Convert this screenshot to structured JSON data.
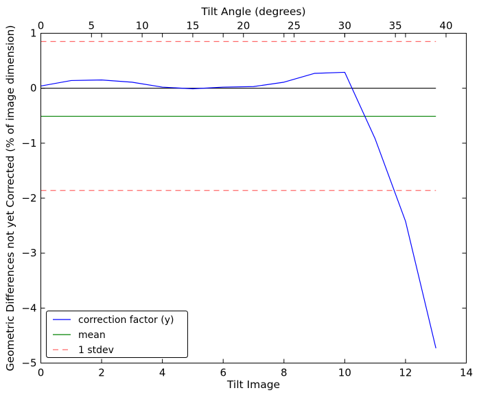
{
  "chart_data": {
    "type": "line",
    "xlabel": "Tilt Image",
    "ylabel": "Geometric Differences not yet Corrected (% of image dimension)",
    "x2label": "Tilt Angle (degrees)",
    "xlim": [
      0,
      14
    ],
    "ylim": [
      -5,
      1
    ],
    "x2lim": [
      0,
      42
    ],
    "xticks": [
      0,
      2,
      4,
      6,
      8,
      10,
      12,
      14
    ],
    "yticks": [
      1,
      0,
      -1,
      -2,
      -3,
      -4,
      -5
    ],
    "x2ticks": [
      0,
      5,
      10,
      15,
      20,
      25,
      30,
      35,
      40
    ],
    "grid": false,
    "legend_position": "lower-left",
    "colors": {
      "correction": "#0000ff",
      "mean": "#008000",
      "stdev": "#ff0000",
      "zero": "#000000"
    },
    "series": [
      {
        "name": "correction factor (y)",
        "style": "solid",
        "x": [
          0,
          1,
          2,
          3,
          4,
          5,
          6,
          7,
          8,
          9,
          10,
          11,
          12,
          13
        ],
        "y": [
          0.04,
          0.14,
          0.15,
          0.11,
          0.02,
          -0.01,
          0.02,
          0.03,
          0.11,
          0.27,
          0.29,
          -0.92,
          -2.42,
          -4.73
        ]
      },
      {
        "name": "mean",
        "style": "solid",
        "x": [
          0,
          13
        ],
        "y": [
          -0.51,
          -0.51
        ]
      },
      {
        "name": "1 stdev",
        "style": "dashed",
        "x": [
          0,
          13
        ],
        "y": [
          0.85,
          0.85
        ]
      },
      {
        "name": "",
        "style": "dashed",
        "x": [
          0,
          13
        ],
        "y": [
          -1.86,
          -1.86
        ]
      },
      {
        "name": "",
        "style": "solid",
        "x": [
          0,
          13
        ],
        "y": [
          0,
          0
        ]
      }
    ]
  }
}
